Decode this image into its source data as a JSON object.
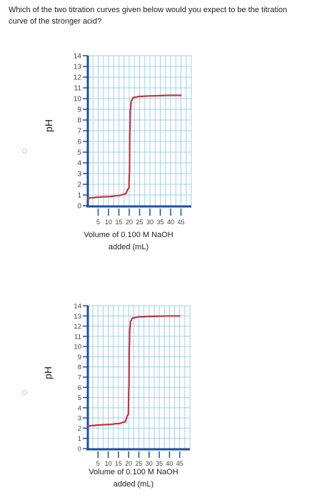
{
  "question": {
    "line1": "Which of the two titration curves given below would you expect to be the titration",
    "line2": "curve of the stronger acid?"
  },
  "colors": {
    "grid": "#9fd0f2",
    "axis": "#1b4fa0",
    "curve": "#c9323a"
  },
  "chart_data": [
    {
      "type": "line",
      "title": "",
      "ylabel": "pH",
      "xlabel_line1": "Volume of 0.100 M NaOH",
      "xlabel_line2": "added (mL)",
      "xlim": [
        0,
        50
      ],
      "ylim": [
        0,
        14
      ],
      "x_ticks": [
        5,
        10,
        15,
        20,
        25,
        30,
        35,
        40,
        45
      ],
      "y_ticks": [
        0,
        1,
        2,
        3,
        4,
        5,
        6,
        7,
        8,
        9,
        10,
        11,
        12,
        13,
        14
      ],
      "grid": true,
      "series": [
        {
          "x": [
            0,
            2,
            5,
            10,
            15,
            18,
            19.8,
            20.1,
            20.3,
            20.6,
            21,
            22,
            25,
            30,
            40,
            45
          ],
          "y": [
            0.7,
            0.75,
            0.8,
            0.85,
            0.95,
            1.1,
            1.6,
            3,
            7,
            9,
            9.8,
            10.1,
            10.2,
            10.25,
            10.3,
            10.3
          ]
        }
      ]
    },
    {
      "type": "line",
      "title": "",
      "ylabel": "pH",
      "xlabel_line1": "Volume of 0.100 M NaOH",
      "xlabel_line2": "added (mL)",
      "xlim": [
        0,
        50
      ],
      "ylim": [
        0,
        14
      ],
      "x_ticks": [
        5,
        10,
        15,
        20,
        25,
        30,
        35,
        40,
        45
      ],
      "y_ticks": [
        0,
        1,
        2,
        3,
        4,
        5,
        6,
        7,
        8,
        9,
        10,
        11,
        12,
        13,
        14
      ],
      "grid": true,
      "series": [
        {
          "x": [
            0,
            2,
            5,
            10,
            15,
            18,
            19.8,
            20.1,
            20.3,
            20.6,
            21,
            22,
            25,
            30,
            40,
            45
          ],
          "y": [
            2.2,
            2.25,
            2.3,
            2.35,
            2.45,
            2.6,
            3.3,
            6,
            10,
            11.8,
            12.5,
            12.8,
            12.9,
            12.95,
            13,
            13
          ]
        }
      ]
    }
  ]
}
